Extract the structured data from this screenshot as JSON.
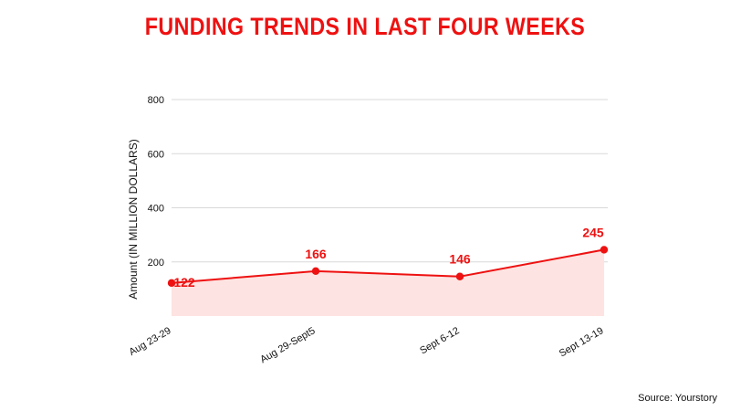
{
  "chart_data": {
    "type": "area",
    "title": "FUNDING TRENDS IN LAST FOUR WEEKS",
    "xlabel": "",
    "ylabel": "Amount (IN MILLION DOLLARS)",
    "categories": [
      "Aug 23-29",
      "Aug 29-Sept5",
      "Sept 6-12",
      "Sept 13-19"
    ],
    "series": [
      {
        "values": [
          122,
          166,
          146,
          245
        ]
      }
    ],
    "data_labels": [
      "122",
      "166",
      "146",
      "245"
    ],
    "ylim": [
      0,
      800
    ],
    "yticks": [
      200,
      400,
      600,
      800
    ],
    "ytick_labels": [
      "200",
      "400",
      "600",
      "800"
    ],
    "grid": true,
    "legend": "none"
  },
  "source": "Source: Yourstory",
  "colors": {
    "accent": "#ee1111",
    "area_fill": "#fde3e1",
    "grid": "#d9d9d9",
    "text": "#111111"
  }
}
